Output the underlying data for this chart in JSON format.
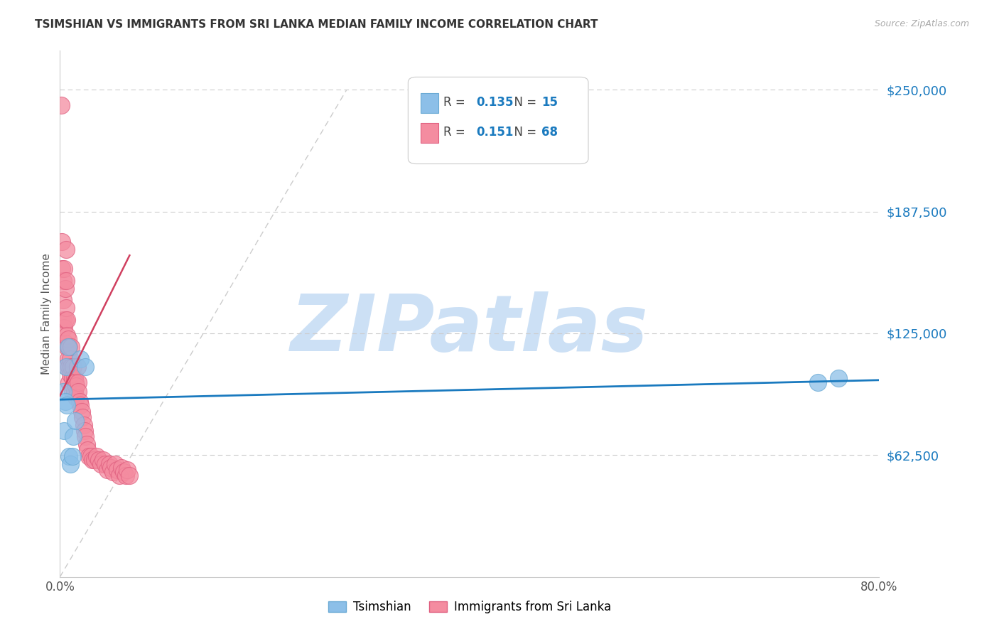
{
  "title": "TSIMSHIAN VS IMMIGRANTS FROM SRI LANKA MEDIAN FAMILY INCOME CORRELATION CHART",
  "source": "Source: ZipAtlas.com",
  "ylabel": "Median Family Income",
  "xlim": [
    0.0,
    0.8
  ],
  "ylim": [
    0,
    270000
  ],
  "xtick_positions": [
    0.0,
    0.1,
    0.2,
    0.3,
    0.4,
    0.5,
    0.6,
    0.7,
    0.8
  ],
  "xticklabels": [
    "0.0%",
    "",
    "",
    "",
    "",
    "",
    "",
    "",
    "80.0%"
  ],
  "ytick_values": [
    62500,
    125000,
    187500,
    250000
  ],
  "ytick_labels": [
    "$62,500",
    "$125,000",
    "$187,500",
    "$250,000"
  ],
  "series1_name": "Tsimshian",
  "series1_color": "#8cbfe8",
  "series1_edge_color": "#6aaad4",
  "series1_R": "0.135",
  "series1_N": "15",
  "series2_name": "Immigrants from Sri Lanka",
  "series2_color": "#f48ca0",
  "series2_edge_color": "#e06080",
  "series2_R": "0.151",
  "series2_N": "68",
  "trend1_color": "#1a7abf",
  "trend2_color": "#d04060",
  "ref_line_color": "#cccccc",
  "legend_R_color": "#333333",
  "legend_val_color": "#1a7abf",
  "background_color": "#ffffff",
  "watermark": "ZIPatlas",
  "watermark_color": "#cce0f5",
  "grid_color": "#cccccc",
  "title_fontsize": 11,
  "series1_x": [
    0.003,
    0.004,
    0.005,
    0.006,
    0.007,
    0.008,
    0.009,
    0.01,
    0.012,
    0.013,
    0.015,
    0.02,
    0.025,
    0.74,
    0.76
  ],
  "series1_y": [
    95000,
    75000,
    90000,
    108000,
    88000,
    118000,
    62000,
    58000,
    62000,
    72000,
    80000,
    112000,
    108000,
    100000,
    102000
  ],
  "series2_x": [
    0.001,
    0.002,
    0.002,
    0.003,
    0.003,
    0.003,
    0.004,
    0.004,
    0.005,
    0.005,
    0.005,
    0.006,
    0.006,
    0.006,
    0.007,
    0.007,
    0.007,
    0.007,
    0.008,
    0.008,
    0.009,
    0.009,
    0.009,
    0.01,
    0.01,
    0.011,
    0.011,
    0.012,
    0.012,
    0.013,
    0.014,
    0.014,
    0.015,
    0.016,
    0.016,
    0.017,
    0.018,
    0.018,
    0.019,
    0.02,
    0.021,
    0.022,
    0.023,
    0.024,
    0.025,
    0.026,
    0.027,
    0.028,
    0.03,
    0.032,
    0.034,
    0.036,
    0.038,
    0.04,
    0.042,
    0.044,
    0.046,
    0.048,
    0.05,
    0.052,
    0.054,
    0.056,
    0.058,
    0.06,
    0.062,
    0.064,
    0.066,
    0.068
  ],
  "series2_y": [
    242000,
    172000,
    158000,
    152000,
    142000,
    132000,
    158000,
    128000,
    148000,
    132000,
    120000,
    168000,
    152000,
    138000,
    132000,
    124000,
    118000,
    108000,
    122000,
    112000,
    118000,
    108000,
    100000,
    112000,
    104000,
    118000,
    108000,
    102000,
    95000,
    108000,
    102000,
    95000,
    100000,
    98000,
    92000,
    108000,
    100000,
    95000,
    90000,
    88000,
    85000,
    82000,
    78000,
    75000,
    72000,
    68000,
    65000,
    62000,
    62000,
    60000,
    60000,
    62000,
    60000,
    58000,
    60000,
    58000,
    55000,
    58000,
    56000,
    54000,
    58000,
    55000,
    52000,
    56000,
    54000,
    52000,
    55000,
    52000
  ],
  "trend1_x0": 0.0,
  "trend1_y0": 91000,
  "trend1_x1": 0.8,
  "trend1_y1": 101000,
  "trend2_x0": 0.0,
  "trend2_y0": 93000,
  "trend2_x1": 0.068,
  "trend2_y1": 165000,
  "refline_x0": 0.0,
  "refline_y0": 0,
  "refline_x1": 0.28,
  "refline_y1": 250000
}
